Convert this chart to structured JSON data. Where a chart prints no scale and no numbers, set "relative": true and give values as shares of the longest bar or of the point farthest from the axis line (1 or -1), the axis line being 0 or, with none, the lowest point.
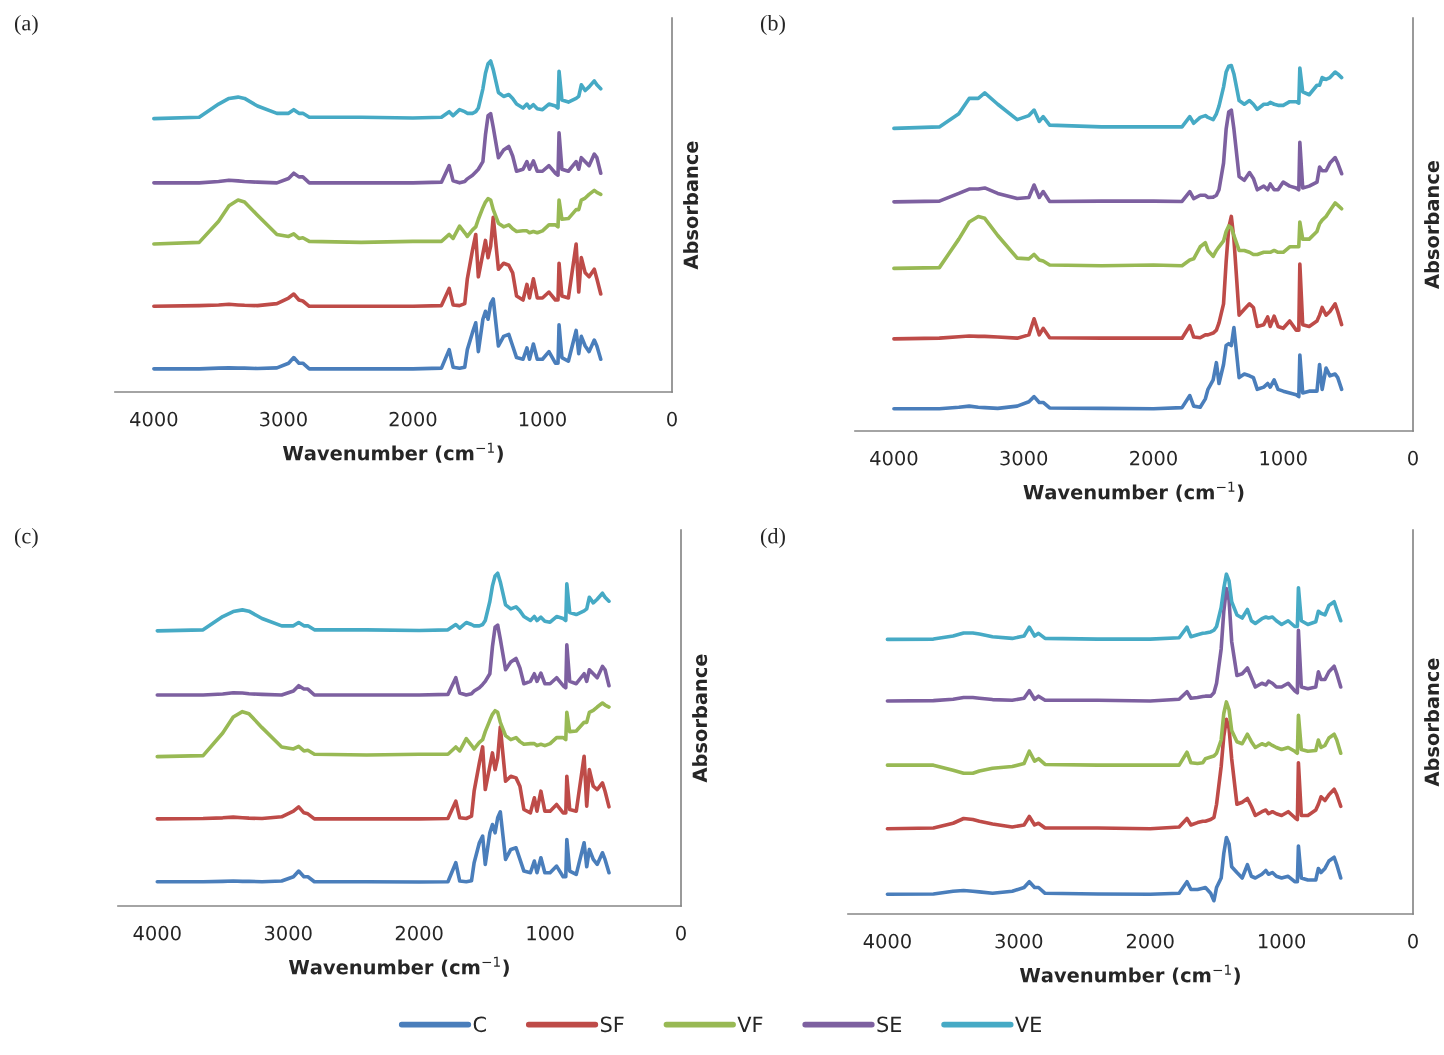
{
  "chart_data": [
    {
      "type": "line",
      "title": "(a)",
      "xlabel": "Wavenumber (cm$^{−1}$)",
      "ylabel": "Absorbance",
      "relative": true,
      "tick_labels": "x",
      "xlim": [
        4300,
        0
      ],
      "xticks": [
        4000,
        3000,
        2000,
        1000,
        0
      ],
      "legend": "bottom",
      "x": [
        4000,
        3650,
        3500,
        3420,
        3350,
        3300,
        3200,
        3050,
        2960,
        2920,
        2880,
        2850,
        2800,
        2400,
        2000,
        1780,
        1720,
        1690,
        1640,
        1600,
        1580,
        1540,
        1515,
        1495,
        1460,
        1440,
        1420,
        1400,
        1380,
        1340,
        1300,
        1260,
        1230,
        1200,
        1150,
        1120,
        1100,
        1070,
        1040,
        1000,
        950,
        900,
        880,
        872,
        850,
        800,
        740,
        720,
        700,
        670,
        640,
        600,
        580,
        550
      ],
      "series": [
        {
          "name": "C",
          "color": "#4a7ebb",
          "values": [
            0.07,
            0.07,
            0.072,
            0.073,
            0.072,
            0.072,
            0.071,
            0.073,
            0.087,
            0.104,
            0.087,
            0.087,
            0.07,
            0.07,
            0.07,
            0.072,
            0.128,
            0.075,
            0.072,
            0.075,
            0.128,
            0.18,
            0.209,
            0.122,
            0.22,
            0.244,
            0.22,
            0.267,
            0.281,
            0.139,
            0.168,
            0.174,
            0.139,
            0.104,
            0.099,
            0.133,
            0.099,
            0.145,
            0.099,
            0.099,
            0.122,
            0.087,
            0.087,
            0.203,
            0.104,
            0.093,
            0.186,
            0.116,
            0.168,
            0.139,
            0.122,
            0.157,
            0.139,
            0.099
          ]
        },
        {
          "name": "SF",
          "color": "#be4b48",
          "values": [
            0.259,
            0.261,
            0.263,
            0.265,
            0.263,
            0.262,
            0.261,
            0.267,
            0.284,
            0.296,
            0.278,
            0.275,
            0.259,
            0.259,
            0.259,
            0.261,
            0.313,
            0.263,
            0.261,
            0.267,
            0.342,
            0.429,
            0.476,
            0.348,
            0.418,
            0.458,
            0.406,
            0.441,
            0.528,
            0.371,
            0.389,
            0.383,
            0.36,
            0.29,
            0.278,
            0.325,
            0.284,
            0.342,
            0.284,
            0.284,
            0.302,
            0.278,
            0.278,
            0.389,
            0.29,
            0.284,
            0.447,
            0.302,
            0.406,
            0.36,
            0.348,
            0.371,
            0.342,
            0.296
          ]
        },
        {
          "name": "VF",
          "color": "#98b954",
          "values": [
            0.447,
            0.452,
            0.516,
            0.563,
            0.58,
            0.574,
            0.534,
            0.476,
            0.47,
            0.478,
            0.464,
            0.466,
            0.455,
            0.452,
            0.455,
            0.455,
            0.476,
            0.464,
            0.501,
            0.481,
            0.47,
            0.49,
            0.499,
            0.522,
            0.557,
            0.574,
            0.584,
            0.58,
            0.551,
            0.51,
            0.499,
            0.505,
            0.493,
            0.485,
            0.487,
            0.487,
            0.481,
            0.485,
            0.481,
            0.487,
            0.505,
            0.505,
            0.499,
            0.58,
            0.522,
            0.524,
            0.551,
            0.551,
            0.58,
            0.586,
            0.597,
            0.609,
            0.603,
            0.597
          ]
        },
        {
          "name": "SE",
          "color": "#7d60a0",
          "values": [
            0.632,
            0.632,
            0.636,
            0.64,
            0.638,
            0.636,
            0.634,
            0.632,
            0.645,
            0.661,
            0.65,
            0.65,
            0.632,
            0.632,
            0.632,
            0.634,
            0.684,
            0.638,
            0.632,
            0.636,
            0.644,
            0.655,
            0.665,
            0.673,
            0.696,
            0.777,
            0.835,
            0.841,
            0.8,
            0.708,
            0.731,
            0.742,
            0.713,
            0.667,
            0.673,
            0.696,
            0.673,
            0.698,
            0.667,
            0.667,
            0.684,
            0.661,
            0.655,
            0.783,
            0.673,
            0.667,
            0.696,
            0.673,
            0.708,
            0.696,
            0.684,
            0.719,
            0.708,
            0.661
          ]
        },
        {
          "name": "VE",
          "color": "#46aac5",
          "values": [
            0.826,
            0.83,
            0.87,
            0.887,
            0.891,
            0.887,
            0.864,
            0.842,
            0.842,
            0.853,
            0.842,
            0.842,
            0.83,
            0.83,
            0.828,
            0.83,
            0.847,
            0.835,
            0.853,
            0.847,
            0.842,
            0.842,
            0.847,
            0.858,
            0.916,
            0.963,
            0.992,
            1.0,
            0.974,
            0.905,
            0.893,
            0.899,
            0.887,
            0.87,
            0.858,
            0.87,
            0.858,
            0.868,
            0.856,
            0.853,
            0.87,
            0.864,
            0.858,
            0.969,
            0.882,
            0.876,
            0.887,
            0.893,
            0.928,
            0.911,
            0.922,
            0.94,
            0.928,
            0.916
          ]
        }
      ]
    },
    {
      "type": "line",
      "title": "(b)",
      "xlabel": "Wavenumber (cm$^{−1}$)",
      "ylabel": "Absorbance",
      "relative": true,
      "tick_labels": "x",
      "xlim": [
        4300,
        0
      ],
      "xticks": [
        4000,
        3000,
        2000,
        1000,
        0
      ],
      "x": [
        4000,
        3650,
        3500,
        3420,
        3350,
        3300,
        3200,
        3050,
        2960,
        2920,
        2880,
        2850,
        2800,
        2400,
        2000,
        1780,
        1720,
        1690,
        1640,
        1600,
        1580,
        1540,
        1515,
        1495,
        1460,
        1440,
        1420,
        1400,
        1380,
        1340,
        1300,
        1260,
        1230,
        1200,
        1150,
        1120,
        1100,
        1070,
        1040,
        1000,
        950,
        900,
        880,
        872,
        850,
        800,
        740,
        720,
        700,
        670,
        640,
        600,
        580,
        550
      ],
      "series": [
        {
          "color": "#4a7ebb",
          "values": [
            0.061,
            0.061,
            0.065,
            0.068,
            0.065,
            0.064,
            0.062,
            0.068,
            0.08,
            0.094,
            0.078,
            0.078,
            0.063,
            0.062,
            0.061,
            0.064,
            0.097,
            0.068,
            0.065,
            0.088,
            0.114,
            0.14,
            0.187,
            0.13,
            0.182,
            0.234,
            0.239,
            0.234,
            0.283,
            0.146,
            0.156,
            0.151,
            0.146,
            0.114,
            0.12,
            0.13,
            0.12,
            0.14,
            0.114,
            0.109,
            0.104,
            0.099,
            0.094,
            0.208,
            0.104,
            0.109,
            0.109,
            0.182,
            0.114,
            0.172,
            0.151,
            0.156,
            0.146,
            0.114
          ]
        },
        {
          "color": "#be4b48",
          "values": [
            0.252,
            0.254,
            0.258,
            0.26,
            0.259,
            0.259,
            0.257,
            0.254,
            0.263,
            0.307,
            0.263,
            0.281,
            0.255,
            0.254,
            0.254,
            0.254,
            0.288,
            0.257,
            0.255,
            0.263,
            0.263,
            0.268,
            0.276,
            0.296,
            0.348,
            0.463,
            0.556,
            0.587,
            0.525,
            0.317,
            0.333,
            0.348,
            0.338,
            0.286,
            0.291,
            0.312,
            0.286,
            0.314,
            0.286,
            0.281,
            0.301,
            0.276,
            0.276,
            0.457,
            0.291,
            0.286,
            0.301,
            0.317,
            0.338,
            0.317,
            0.327,
            0.348,
            0.327,
            0.291
          ]
        },
        {
          "color": "#98b954",
          "values": [
            0.445,
            0.447,
            0.525,
            0.572,
            0.587,
            0.582,
            0.535,
            0.473,
            0.471,
            0.483,
            0.468,
            0.465,
            0.454,
            0.452,
            0.454,
            0.452,
            0.468,
            0.471,
            0.504,
            0.515,
            0.494,
            0.478,
            0.494,
            0.504,
            0.52,
            0.546,
            0.561,
            0.556,
            0.535,
            0.494,
            0.494,
            0.489,
            0.483,
            0.483,
            0.489,
            0.489,
            0.489,
            0.494,
            0.489,
            0.489,
            0.504,
            0.504,
            0.504,
            0.572,
            0.525,
            0.525,
            0.546,
            0.567,
            0.577,
            0.587,
            0.603,
            0.624,
            0.618,
            0.608
          ]
        },
        {
          "color": "#7d60a0",
          "values": [
            0.627,
            0.629,
            0.65,
            0.662,
            0.662,
            0.665,
            0.65,
            0.636,
            0.639,
            0.673,
            0.639,
            0.655,
            0.628,
            0.629,
            0.629,
            0.628,
            0.655,
            0.636,
            0.645,
            0.645,
            0.639,
            0.64,
            0.645,
            0.66,
            0.733,
            0.826,
            0.873,
            0.878,
            0.826,
            0.696,
            0.686,
            0.707,
            0.691,
            0.66,
            0.67,
            0.66,
            0.676,
            0.66,
            0.66,
            0.681,
            0.67,
            0.665,
            0.66,
            0.79,
            0.665,
            0.67,
            0.681,
            0.722,
            0.712,
            0.712,
            0.733,
            0.748,
            0.733,
            0.704
          ]
        },
        {
          "color": "#46aac5",
          "values": [
            0.828,
            0.832,
            0.868,
            0.91,
            0.91,
            0.925,
            0.894,
            0.852,
            0.863,
            0.878,
            0.847,
            0.86,
            0.837,
            0.832,
            0.832,
            0.832,
            0.86,
            0.842,
            0.858,
            0.863,
            0.858,
            0.852,
            0.868,
            0.889,
            0.941,
            0.982,
            0.998,
            1.0,
            0.977,
            0.904,
            0.894,
            0.904,
            0.894,
            0.88,
            0.894,
            0.894,
            0.899,
            0.894,
            0.891,
            0.891,
            0.901,
            0.901,
            0.897,
            0.993,
            0.928,
            0.92,
            0.946,
            0.946,
            0.967,
            0.962,
            0.967,
            0.982,
            0.977,
            0.967
          ]
        }
      ]
    },
    {
      "type": "line",
      "title": "(c)",
      "xlabel": "Wavenumber (cm$^{−1}$)",
      "ylabel": "Absorbance",
      "relative": true,
      "tick_labels": "x",
      "xlim": [
        4300,
        0
      ],
      "xticks": [
        4000,
        3000,
        2000,
        1000,
        0
      ],
      "x": [
        4000,
        3650,
        3500,
        3420,
        3350,
        3300,
        3200,
        3050,
        2960,
        2920,
        2880,
        2850,
        2800,
        2400,
        2000,
        1780,
        1720,
        1690,
        1640,
        1600,
        1580,
        1540,
        1515,
        1495,
        1460,
        1440,
        1420,
        1400,
        1380,
        1340,
        1300,
        1260,
        1230,
        1200,
        1150,
        1120,
        1100,
        1070,
        1040,
        1000,
        950,
        900,
        880,
        872,
        850,
        800,
        740,
        720,
        700,
        670,
        640,
        600,
        580,
        550
      ],
      "series": [
        {
          "color": "#4a7ebb",
          "values": [
            0.073,
            0.073,
            0.074,
            0.075,
            0.074,
            0.074,
            0.073,
            0.075,
            0.088,
            0.105,
            0.088,
            0.088,
            0.073,
            0.073,
            0.072,
            0.073,
            0.13,
            0.075,
            0.073,
            0.076,
            0.13,
            0.19,
            0.21,
            0.125,
            0.22,
            0.245,
            0.22,
            0.265,
            0.283,
            0.14,
            0.17,
            0.175,
            0.14,
            0.105,
            0.1,
            0.135,
            0.1,
            0.145,
            0.1,
            0.1,
            0.12,
            0.088,
            0.088,
            0.2,
            0.105,
            0.095,
            0.19,
            0.118,
            0.17,
            0.14,
            0.125,
            0.16,
            0.14,
            0.1
          ]
        },
        {
          "color": "#be4b48",
          "values": [
            0.262,
            0.263,
            0.265,
            0.267,
            0.265,
            0.264,
            0.263,
            0.268,
            0.285,
            0.298,
            0.28,
            0.277,
            0.262,
            0.262,
            0.262,
            0.263,
            0.315,
            0.265,
            0.263,
            0.27,
            0.345,
            0.43,
            0.478,
            0.35,
            0.42,
            0.46,
            0.41,
            0.445,
            0.538,
            0.375,
            0.39,
            0.385,
            0.36,
            0.29,
            0.28,
            0.325,
            0.285,
            0.345,
            0.285,
            0.285,
            0.305,
            0.28,
            0.28,
            0.39,
            0.29,
            0.285,
            0.45,
            0.3,
            0.41,
            0.36,
            0.35,
            0.37,
            0.345,
            0.298
          ]
        },
        {
          "color": "#98b954",
          "values": [
            0.449,
            0.452,
            0.52,
            0.568,
            0.584,
            0.578,
            0.536,
            0.478,
            0.472,
            0.48,
            0.466,
            0.468,
            0.456,
            0.454,
            0.456,
            0.456,
            0.478,
            0.466,
            0.503,
            0.483,
            0.472,
            0.492,
            0.5,
            0.524,
            0.558,
            0.576,
            0.587,
            0.582,
            0.552,
            0.512,
            0.5,
            0.506,
            0.494,
            0.486,
            0.488,
            0.488,
            0.482,
            0.486,
            0.482,
            0.488,
            0.506,
            0.506,
            0.5,
            0.582,
            0.524,
            0.526,
            0.552,
            0.552,
            0.582,
            0.588,
            0.598,
            0.61,
            0.604,
            0.598
          ]
        },
        {
          "color": "#7d60a0",
          "values": [
            0.634,
            0.634,
            0.637,
            0.641,
            0.64,
            0.638,
            0.636,
            0.634,
            0.646,
            0.662,
            0.652,
            0.652,
            0.634,
            0.634,
            0.634,
            0.636,
            0.686,
            0.64,
            0.634,
            0.638,
            0.646,
            0.656,
            0.666,
            0.675,
            0.698,
            0.78,
            0.838,
            0.844,
            0.802,
            0.71,
            0.733,
            0.744,
            0.715,
            0.668,
            0.675,
            0.698,
            0.675,
            0.7,
            0.668,
            0.668,
            0.686,
            0.662,
            0.656,
            0.785,
            0.675,
            0.668,
            0.698,
            0.675,
            0.71,
            0.698,
            0.686,
            0.72,
            0.71,
            0.662
          ]
        },
        {
          "color": "#46aac5",
          "values": [
            0.827,
            0.83,
            0.87,
            0.885,
            0.89,
            0.886,
            0.864,
            0.842,
            0.842,
            0.852,
            0.842,
            0.842,
            0.83,
            0.83,
            0.828,
            0.83,
            0.846,
            0.835,
            0.852,
            0.846,
            0.842,
            0.842,
            0.846,
            0.858,
            0.915,
            0.962,
            0.992,
            1.0,
            0.974,
            0.905,
            0.893,
            0.899,
            0.887,
            0.87,
            0.858,
            0.87,
            0.858,
            0.868,
            0.856,
            0.853,
            0.87,
            0.864,
            0.858,
            0.968,
            0.882,
            0.876,
            0.887,
            0.893,
            0.928,
            0.911,
            0.922,
            0.94,
            0.928,
            0.916
          ]
        }
      ]
    },
    {
      "type": "line",
      "title": "(d)",
      "xlabel": "Wavenumber (cm$^{−1}$)",
      "ylabel": "Absorbance",
      "relative": true,
      "tick_labels": "x",
      "xlim": [
        4300,
        0
      ],
      "xticks": [
        4000,
        3000,
        2000,
        1000,
        0
      ],
      "x": [
        4000,
        3650,
        3500,
        3420,
        3350,
        3300,
        3200,
        3050,
        2960,
        2920,
        2880,
        2850,
        2800,
        2400,
        2000,
        1780,
        1720,
        1690,
        1640,
        1600,
        1580,
        1540,
        1515,
        1495,
        1460,
        1440,
        1420,
        1400,
        1380,
        1340,
        1300,
        1260,
        1230,
        1200,
        1150,
        1120,
        1100,
        1070,
        1040,
        1000,
        950,
        900,
        880,
        872,
        850,
        800,
        740,
        720,
        700,
        670,
        640,
        600,
        580,
        550
      ],
      "series": [
        {
          "color": "#4a7ebb",
          "values": [
            0.058,
            0.059,
            0.067,
            0.069,
            0.067,
            0.065,
            0.061,
            0.067,
            0.078,
            0.095,
            0.078,
            0.078,
            0.061,
            0.059,
            0.058,
            0.061,
            0.095,
            0.072,
            0.072,
            0.076,
            0.078,
            0.061,
            0.039,
            0.078,
            0.106,
            0.178,
            0.225,
            0.206,
            0.139,
            0.122,
            0.106,
            0.145,
            0.111,
            0.106,
            0.117,
            0.128,
            0.117,
            0.122,
            0.111,
            0.106,
            0.111,
            0.095,
            0.095,
            0.2,
            0.106,
            0.1,
            0.1,
            0.134,
            0.122,
            0.134,
            0.156,
            0.167,
            0.145,
            0.106
          ]
        },
        {
          "color": "#be4b48",
          "values": [
            0.251,
            0.253,
            0.267,
            0.281,
            0.278,
            0.273,
            0.265,
            0.256,
            0.262,
            0.287,
            0.262,
            0.267,
            0.253,
            0.253,
            0.251,
            0.256,
            0.281,
            0.262,
            0.269,
            0.273,
            0.273,
            0.278,
            0.284,
            0.323,
            0.434,
            0.523,
            0.573,
            0.546,
            0.457,
            0.323,
            0.329,
            0.34,
            0.317,
            0.29,
            0.301,
            0.306,
            0.295,
            0.301,
            0.295,
            0.29,
            0.301,
            0.284,
            0.278,
            0.445,
            0.29,
            0.29,
            0.306,
            0.323,
            0.345,
            0.334,
            0.351,
            0.367,
            0.351,
            0.317
          ]
        },
        {
          "color": "#98b954",
          "values": [
            0.438,
            0.438,
            0.423,
            0.414,
            0.414,
            0.421,
            0.429,
            0.434,
            0.443,
            0.479,
            0.45,
            0.457,
            0.44,
            0.438,
            0.438,
            0.438,
            0.476,
            0.445,
            0.443,
            0.445,
            0.457,
            0.462,
            0.465,
            0.473,
            0.512,
            0.59,
            0.624,
            0.601,
            0.54,
            0.507,
            0.501,
            0.529,
            0.507,
            0.49,
            0.501,
            0.496,
            0.503,
            0.496,
            0.49,
            0.484,
            0.49,
            0.479,
            0.473,
            0.585,
            0.484,
            0.479,
            0.481,
            0.512,
            0.49,
            0.496,
            0.518,
            0.529,
            0.512,
            0.473
          ]
        },
        {
          "color": "#7d60a0",
          "values": [
            0.627,
            0.628,
            0.632,
            0.637,
            0.637,
            0.635,
            0.631,
            0.629,
            0.635,
            0.657,
            0.632,
            0.641,
            0.629,
            0.629,
            0.627,
            0.632,
            0.654,
            0.635,
            0.637,
            0.64,
            0.641,
            0.641,
            0.651,
            0.679,
            0.78,
            0.891,
            0.958,
            0.924,
            0.802,
            0.702,
            0.707,
            0.724,
            0.696,
            0.668,
            0.679,
            0.674,
            0.685,
            0.679,
            0.668,
            0.668,
            0.679,
            0.657,
            0.651,
            0.835,
            0.668,
            0.663,
            0.668,
            0.713,
            0.69,
            0.69,
            0.713,
            0.729,
            0.707,
            0.668
          ]
        },
        {
          "color": "#46aac5",
          "values": [
            0.808,
            0.809,
            0.818,
            0.827,
            0.827,
            0.824,
            0.816,
            0.811,
            0.818,
            0.844,
            0.818,
            0.826,
            0.811,
            0.809,
            0.809,
            0.813,
            0.844,
            0.816,
            0.822,
            0.826,
            0.827,
            0.83,
            0.835,
            0.846,
            0.902,
            0.958,
            1.0,
            0.98,
            0.919,
            0.88,
            0.871,
            0.896,
            0.863,
            0.855,
            0.869,
            0.874,
            0.871,
            0.874,
            0.863,
            0.852,
            0.863,
            0.846,
            0.846,
            0.96,
            0.863,
            0.852,
            0.86,
            0.891,
            0.885,
            0.88,
            0.908,
            0.919,
            0.896,
            0.863
          ]
        }
      ]
    }
  ]
}
